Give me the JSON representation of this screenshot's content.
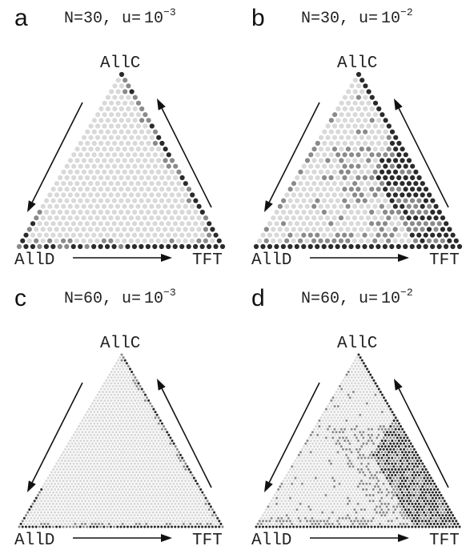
{
  "figure": {
    "vertex_labels": {
      "top": "AllC",
      "left": "AllD",
      "right": "TFT"
    },
    "panels": [
      {
        "id": "a",
        "letter": "a",
        "N_text": "N=30,",
        "u_text": "u=",
        "u_base": "10",
        "u_exp": "−3",
        "N": 30,
        "u": 0.001,
        "pattern": "edges-low"
      },
      {
        "id": "b",
        "letter": "b",
        "N_text": "N=30,",
        "u_text": "u=",
        "u_base": "10",
        "u_exp": "−2",
        "N": 30,
        "u": 0.01,
        "pattern": "bands-high"
      },
      {
        "id": "c",
        "letter": "c",
        "N_text": "N=60,",
        "u_text": "u=",
        "u_base": "10",
        "u_exp": "−3",
        "N": 60,
        "u": 0.001,
        "pattern": "edges-low"
      },
      {
        "id": "d",
        "letter": "d",
        "N_text": "N=60,",
        "u_text": "u=",
        "u_base": "10",
        "u_exp": "−2",
        "N": 60,
        "u": 0.01,
        "pattern": "bands-high"
      }
    ],
    "colors": {
      "background_dot": "#d9d9d9",
      "mid_dot": "#8a8a8a",
      "dark_dot": "#2a2a2a",
      "arrow": "#111111",
      "text": "#222222"
    }
  }
}
